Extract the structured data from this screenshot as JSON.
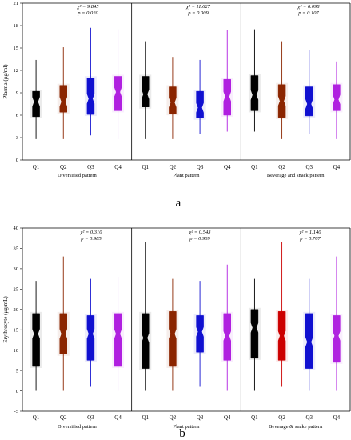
{
  "chart_data": [
    {
      "type": "box",
      "panel_label": "a",
      "ylabel": "Plasma (μg/ml)",
      "ylim": [
        0,
        21
      ],
      "yticks": [
        0,
        3,
        6,
        9,
        12,
        15,
        18,
        21
      ],
      "categories": [
        "Q1",
        "Q2",
        "Q3",
        "Q4"
      ],
      "colors": [
        "#000000",
        "#8B2500",
        "#1010D0",
        "#B020E0"
      ],
      "grid": false,
      "groups": [
        {
          "name": "Diversified pattern",
          "stat_chi": "χ² = 9.845",
          "stat_p": "p = 0.020",
          "boxes": [
            {
              "min": 2.8,
              "q1": 5.8,
              "median": 7.8,
              "q3": 9.2,
              "max": 13.4
            },
            {
              "min": 2.8,
              "q1": 6.4,
              "median": 7.8,
              "q3": 10.0,
              "max": 15.1
            },
            {
              "min": 3.3,
              "q1": 6.1,
              "median": 8.2,
              "q3": 11.0,
              "max": 17.7
            },
            {
              "min": 2.8,
              "q1": 6.6,
              "median": 9.1,
              "q3": 11.2,
              "max": 17.5
            }
          ]
        },
        {
          "name": "Plant pattern",
          "stat_chi": "χ² = 11.627",
          "stat_p": "p = 0.009",
          "boxes": [
            {
              "min": 2.8,
              "q1": 7.1,
              "median": 8.8,
              "q3": 11.2,
              "max": 15.9
            },
            {
              "min": 2.8,
              "q1": 6.2,
              "median": 7.7,
              "q3": 9.8,
              "max": 13.8
            },
            {
              "min": 3.5,
              "q1": 5.6,
              "median": 7.0,
              "q3": 9.2,
              "max": 13.4
            },
            {
              "min": 3.8,
              "q1": 6.0,
              "median": 8.5,
              "q3": 10.8,
              "max": 17.4
            }
          ]
        },
        {
          "name": "Beverage and snack pattern",
          "stat_chi": "χ² = 6.098",
          "stat_p": "p = 0.107",
          "boxes": [
            {
              "min": 3.8,
              "q1": 6.6,
              "median": 8.7,
              "q3": 11.3,
              "max": 17.5
            },
            {
              "min": 2.8,
              "q1": 5.7,
              "median": 7.9,
              "q3": 10.1,
              "max": 15.9
            },
            {
              "min": 3.5,
              "q1": 5.9,
              "median": 7.5,
              "q3": 9.8,
              "max": 14.7
            },
            {
              "min": 2.8,
              "q1": 6.6,
              "median": 8.1,
              "q3": 10.1,
              "max": 13.2
            }
          ]
        }
      ]
    },
    {
      "type": "box",
      "panel_label": "b",
      "ylabel": "Erythrocyte (μg/mL)",
      "ylim": [
        -5,
        40
      ],
      "yticks": [
        -5,
        0,
        5,
        10,
        15,
        20,
        25,
        30,
        35,
        40
      ],
      "categories": [
        "Q1",
        "Q2",
        "Q3",
        "Q4"
      ],
      "colors": [
        "#000000",
        "#8B2500",
        "#1010D0",
        "#B020E0"
      ],
      "group_colors": [
        [
          "#000000",
          "#8B2500",
          "#1010D0",
          "#B020E0"
        ],
        [
          "#000000",
          "#8B2500",
          "#1010D0",
          "#B020E0"
        ],
        [
          "#000000",
          "#CC0000",
          "#1010D0",
          "#B020E0"
        ]
      ],
      "grid": false,
      "groups": [
        {
          "name": "Diversified pattern",
          "stat_chi": "χ² = 0.310",
          "stat_p": "p = 0.985",
          "boxes": [
            {
              "min": 0.0,
              "q1": 6.0,
              "median": 14.0,
              "q3": 19.0,
              "max": 27.0
            },
            {
              "min": 0.0,
              "q1": 9.0,
              "median": 14.0,
              "q3": 19.0,
              "max": 33.0
            },
            {
              "min": 1.0,
              "q1": 7.5,
              "median": 14.0,
              "q3": 18.5,
              "max": 27.5
            },
            {
              "min": 0.0,
              "q1": 6.0,
              "median": 14.0,
              "q3": 19.0,
              "max": 28.0
            }
          ]
        },
        {
          "name": "Plant pattern",
          "stat_chi": "χ² = 0.543",
          "stat_p": "p = 0.909",
          "boxes": [
            {
              "min": 0.0,
              "q1": 5.5,
              "median": 13.0,
              "q3": 19.0,
              "max": 36.5
            },
            {
              "min": 0.0,
              "q1": 6.0,
              "median": 14.0,
              "q3": 19.5,
              "max": 27.5
            },
            {
              "min": 1.0,
              "q1": 9.5,
              "median": 14.5,
              "q3": 18.5,
              "max": 27.0
            },
            {
              "min": 0.0,
              "q1": 7.5,
              "median": 13.5,
              "q3": 19.0,
              "max": 31.0
            }
          ]
        },
        {
          "name": "Beverage & snake pattern",
          "stat_chi": "χ² = 1.140",
          "stat_p": "p = 0.767",
          "boxes": [
            {
              "min": 0.0,
              "q1": 8.0,
              "median": 15.5,
              "q3": 20.0,
              "max": 27.5
            },
            {
              "min": 1.0,
              "q1": 7.5,
              "median": 13.5,
              "q3": 19.5,
              "max": 36.5
            },
            {
              "min": 0.0,
              "q1": 5.5,
              "median": 12.0,
              "q3": 19.0,
              "max": 27.5
            },
            {
              "min": 0.0,
              "q1": 7.0,
              "median": 13.5,
              "q3": 18.5,
              "max": 33.0
            }
          ]
        }
      ]
    }
  ]
}
